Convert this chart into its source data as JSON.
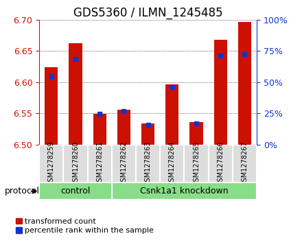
{
  "title": "GDS5360 / ILMN_1245485",
  "samples": [
    "GSM1278259",
    "GSM1278260",
    "GSM1278261",
    "GSM1278262",
    "GSM1278263",
    "GSM1278264",
    "GSM1278265",
    "GSM1278266",
    "GSM1278267"
  ],
  "red_values": [
    6.624,
    6.663,
    6.549,
    6.556,
    6.534,
    6.597,
    6.536,
    6.668,
    6.697
  ],
  "blue_values": [
    6.61,
    6.637,
    6.549,
    6.554,
    6.531,
    6.592,
    6.534,
    6.643,
    6.645
  ],
  "y_min": 6.5,
  "y_max": 6.7,
  "y_ticks": [
    6.5,
    6.55,
    6.6,
    6.65,
    6.7
  ],
  "y2_ticks": [
    0,
    25,
    50,
    75,
    100
  ],
  "bar_color": "#cc1100",
  "blue_color": "#1133cc",
  "control_samples": 3,
  "control_label": "control",
  "treatment_label": "Csnk1a1 knockdown",
  "protocol_label": "protocol",
  "legend_red": "transformed count",
  "legend_blue": "percentile rank within the sample",
  "bar_width": 0.55,
  "group_green": "#88dd88",
  "sample_box_color": "#dddddd",
  "title_fontsize": 12,
  "tick_fontsize": 9
}
